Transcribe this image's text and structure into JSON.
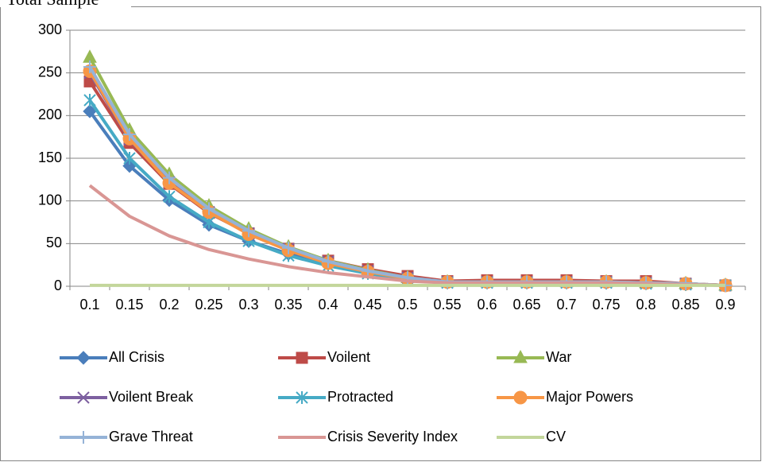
{
  "chart_data": {
    "type": "line",
    "title": "Total Sample",
    "categories": [
      "0.1",
      "0.15",
      "0.2",
      "0.25",
      "0.3",
      "0.35",
      "0.4",
      "0.45",
      "0.5",
      "0.55",
      "0.6",
      "0.65",
      "0.7",
      "0.75",
      "0.8",
      "0.85",
      "0.9"
    ],
    "ylim": [
      0,
      300
    ],
    "yticks": [
      0,
      50,
      100,
      150,
      200,
      250,
      300
    ],
    "grid": true,
    "legend": "bottom",
    "series": [
      {
        "name": "All Crisis",
        "color": "#4a7ebb",
        "marker": "diamond",
        "values": [
          205,
          141,
          101,
          72,
          53,
          38,
          27,
          17,
          9,
          5,
          5,
          5,
          5,
          4,
          4,
          3,
          1
        ]
      },
      {
        "name": "Voilent",
        "color": "#be4b48",
        "marker": "square",
        "values": [
          240,
          168,
          120,
          86,
          62,
          44,
          30,
          20,
          12,
          6,
          7,
          7,
          7,
          6,
          6,
          3,
          1
        ]
      },
      {
        "name": "War",
        "color": "#98b954",
        "marker": "triangle",
        "values": [
          268,
          183,
          131,
          94,
          67,
          46,
          30,
          19,
          10,
          5,
          5,
          5,
          5,
          5,
          4,
          3,
          1
        ]
      },
      {
        "name": "Voilent Break",
        "color": "#7d60a0",
        "marker": "x",
        "values": [
          250,
          172,
          122,
          87,
          62,
          44,
          29,
          18,
          10,
          5,
          5,
          5,
          5,
          5,
          4,
          3,
          1
        ]
      },
      {
        "name": "Protracted",
        "color": "#46aac5",
        "marker": "star",
        "values": [
          218,
          150,
          105,
          75,
          53,
          36,
          24,
          15,
          8,
          4,
          4,
          4,
          4,
          4,
          3,
          2,
          1
        ]
      },
      {
        "name": "Major Powers",
        "color": "#f79646",
        "marker": "circle",
        "values": [
          252,
          173,
          121,
          87,
          61,
          42,
          27,
          17,
          9,
          5,
          5,
          5,
          5,
          5,
          4,
          3,
          1
        ]
      },
      {
        "name": "Grave Threat",
        "color": "#95b3d7",
        "marker": "plus",
        "values": [
          257,
          178,
          127,
          91,
          65,
          45,
          29,
          18,
          10,
          5,
          5,
          5,
          5,
          5,
          4,
          3,
          1
        ]
      },
      {
        "name": "Crisis Severity Index",
        "color": "#d99694",
        "marker": "none",
        "values": [
          118,
          82,
          59,
          43,
          32,
          23,
          16,
          11,
          6,
          4,
          4,
          4,
          4,
          4,
          3,
          2,
          1
        ]
      },
      {
        "name": "CV",
        "color": "#c3d69b",
        "marker": "none",
        "values": [
          1,
          1,
          1,
          1,
          1,
          1,
          1,
          1,
          1,
          1,
          1,
          1,
          1,
          1,
          1,
          1,
          1
        ]
      }
    ]
  }
}
